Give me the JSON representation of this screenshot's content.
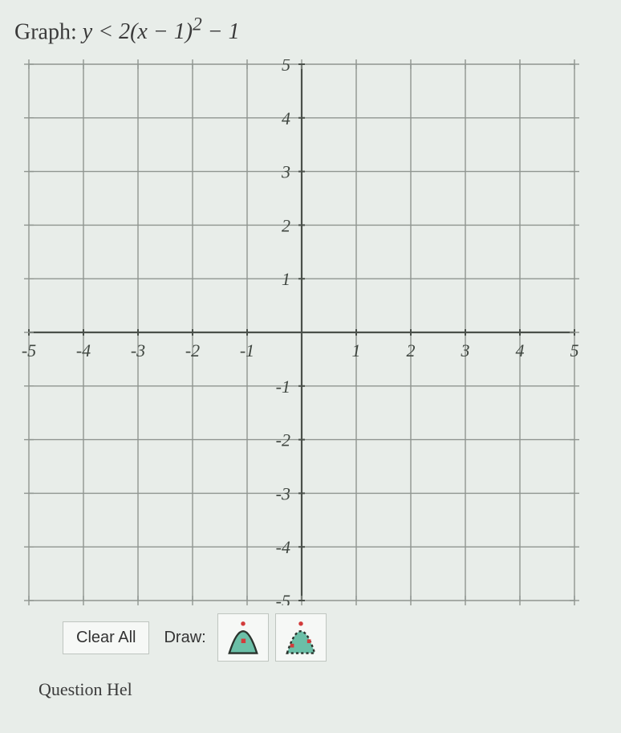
{
  "title": {
    "prefix": "Graph: ",
    "expression_html": "y < 2(x − 1)<sup>2</sup> − 1"
  },
  "graph": {
    "type": "grid",
    "xlim": [
      -5,
      5
    ],
    "ylim": [
      -5,
      5
    ],
    "xtick_step": 1,
    "ytick_step": 1,
    "x_tick_labels": [
      -5,
      -4,
      -3,
      -2,
      -1,
      1,
      2,
      3,
      4,
      5
    ],
    "y_tick_labels": [
      5,
      4,
      3,
      2,
      1,
      -1,
      -2,
      -3,
      -4,
      -5
    ],
    "grid_color": "#8f9590",
    "axis_color": "#4a504a",
    "background_color": "#e8ede9",
    "label_color": "#3f4640",
    "label_fontsize": 22,
    "label_font": "Times New Roman, serif",
    "tick_len": 8
  },
  "toolbar": {
    "clear_label": "Clear All",
    "draw_label": "Draw:",
    "tool1_name": "parabola-shade-solid",
    "tool2_name": "parabola-shade-dashed",
    "shade_fill": "#6bbfa7",
    "curve_color": "#2a322c",
    "dot_color": "#d23b3b"
  },
  "footer_stub": "Question Hel"
}
